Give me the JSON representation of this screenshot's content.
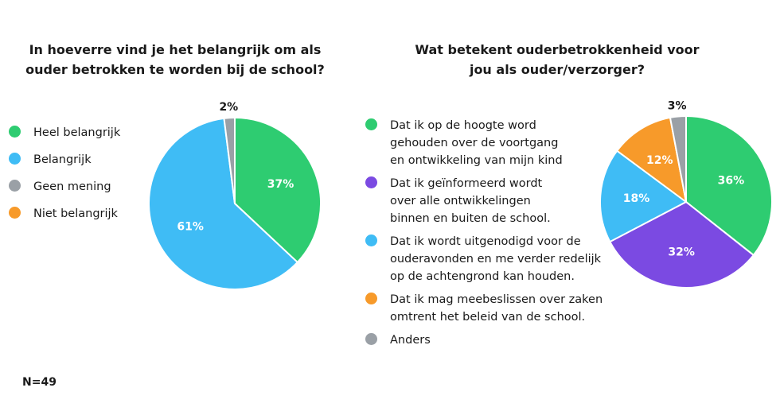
{
  "note": "N=49",
  "chart_data": [
    {
      "type": "pie",
      "title": [
        "In hoeverre vind je het belangrijk om als",
        "ouder betrokken te worden bij de school?"
      ],
      "categories": [
        "Heel belangrijk",
        "Belangrijk",
        "Geen mening",
        "Niet belangrijk"
      ],
      "legend_lines": [
        [
          "Heel belangrijk"
        ],
        [
          "Belangrijk"
        ],
        [
          "Geen mening"
        ],
        [
          "Niet belangrijk"
        ]
      ],
      "values": [
        37,
        61,
        2,
        0
      ],
      "labels": [
        "37%",
        "61%",
        "2%",
        ""
      ],
      "colors": [
        "#2ecc71",
        "#3fbcf5",
        "#9aa0a6",
        "#f79a2a"
      ],
      "legend_position": "left"
    },
    {
      "type": "pie",
      "title": [
        "Wat betekent ouderbetrokkenheid voor",
        "jou als ouder/verzorger?"
      ],
      "categories": [
        "Dat ik op de hoogte word gehouden over de voortgang en ontwikkeling van mijn kind",
        "Dat ik geïnformeerd wordt over alle ontwikkelingen binnen en buiten de school.",
        "Dat ik wordt uitgenodigd voor de ouderavonden en me verder redelijk op de achtengrond kan houden.",
        "Dat ik mag meebeslissen over zaken omtrent het beleid van de school.",
        "Anders"
      ],
      "legend_lines": [
        [
          "Dat ik op de hoogte word",
          "gehouden over de voortgang",
          "en ontwikkeling van mijn kind"
        ],
        [
          "Dat ik geïnformeerd wordt",
          "over alle ontwikkelingen",
          "binnen en buiten de school."
        ],
        [
          "Dat ik wordt uitgenodigd voor de",
          "ouderavonden en me verder redelijk",
          "op de achtengrond kan houden."
        ],
        [
          "Dat ik mag meebeslissen over zaken",
          "omtrent het beleid van de school."
        ],
        [
          "Anders"
        ]
      ],
      "values": [
        36,
        32,
        18,
        12,
        3
      ],
      "labels": [
        "36%",
        "32%",
        "18%",
        "12%",
        "3%"
      ],
      "colors": [
        "#2ecc71",
        "#7b4ae2",
        "#3fbcf5",
        "#f79a2a",
        "#9aa0a6"
      ],
      "legend_position": "left"
    }
  ]
}
